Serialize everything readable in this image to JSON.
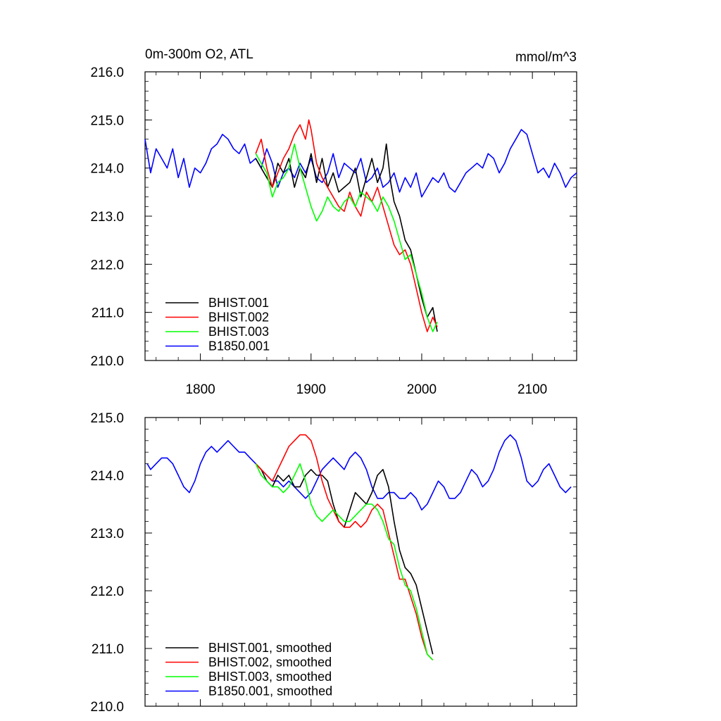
{
  "chart_data": [
    {
      "type": "line",
      "title": "0m-300m O2, ATL",
      "units": "mmol/m^3",
      "xlim": [
        1750,
        2140
      ],
      "ylim": [
        210.0,
        216.0
      ],
      "xticks": [
        1800,
        1900,
        2000,
        2100
      ],
      "xtick_labels": [
        "1800",
        "1900",
        "2000",
        "2100"
      ],
      "yticks": [
        210.0,
        211.0,
        212.0,
        213.0,
        214.0,
        215.0,
        216.0
      ],
      "ytick_labels": [
        "210.0",
        "211.0",
        "212.0",
        "213.0",
        "214.0",
        "215.0",
        "216.0"
      ],
      "legend_position": "bottom-left",
      "series": [
        {
          "name": "BHIST.001",
          "color": "#000000",
          "x": [
            1850,
            1855,
            1860,
            1865,
            1870,
            1875,
            1880,
            1885,
            1890,
            1895,
            1900,
            1905,
            1910,
            1915,
            1920,
            1925,
            1930,
            1935,
            1940,
            1945,
            1950,
            1955,
            1960,
            1965,
            1968,
            1972,
            1975,
            1980,
            1985,
            1990,
            1995,
            2000,
            2005,
            2010,
            2014
          ],
          "y": [
            214.2,
            214.0,
            213.8,
            213.6,
            214.1,
            213.9,
            214.2,
            213.6,
            214.0,
            213.8,
            214.3,
            213.7,
            214.2,
            213.6,
            213.9,
            213.5,
            213.6,
            213.7,
            214.0,
            213.4,
            213.8,
            214.2,
            213.7,
            214.0,
            214.5,
            213.7,
            213.3,
            213.0,
            212.5,
            212.3,
            211.8,
            211.3,
            210.9,
            211.1,
            210.6
          ]
        },
        {
          "name": "BHIST.002",
          "color": "#ff0000",
          "x": [
            1850,
            1855,
            1860,
            1865,
            1870,
            1875,
            1880,
            1885,
            1890,
            1895,
            1898,
            1900,
            1905,
            1910,
            1915,
            1920,
            1925,
            1930,
            1935,
            1940,
            1945,
            1950,
            1955,
            1960,
            1965,
            1970,
            1975,
            1980,
            1985,
            1990,
            1995,
            2000,
            2005,
            2010,
            2014
          ],
          "y": [
            214.3,
            214.6,
            214.0,
            213.6,
            213.9,
            214.2,
            214.4,
            214.7,
            214.9,
            214.6,
            215.0,
            214.8,
            214.1,
            213.8,
            213.6,
            213.4,
            213.2,
            213.1,
            213.5,
            213.2,
            213.0,
            213.5,
            213.3,
            213.6,
            213.2,
            212.8,
            212.4,
            212.2,
            212.3,
            212.0,
            211.5,
            211.0,
            210.6,
            210.9,
            210.7
          ]
        },
        {
          "name": "BHIST.003",
          "color": "#00ff00",
          "x": [
            1850,
            1855,
            1860,
            1865,
            1870,
            1875,
            1880,
            1885,
            1890,
            1895,
            1900,
            1905,
            1910,
            1915,
            1920,
            1925,
            1930,
            1935,
            1940,
            1945,
            1950,
            1955,
            1960,
            1965,
            1970,
            1975,
            1980,
            1985,
            1990,
            1995,
            2000,
            2005,
            2010,
            2014
          ],
          "y": [
            214.3,
            214.1,
            213.9,
            213.4,
            213.7,
            213.8,
            214.0,
            214.5,
            214.0,
            213.6,
            213.2,
            212.9,
            213.1,
            213.4,
            213.2,
            213.1,
            213.3,
            213.4,
            213.2,
            213.5,
            213.4,
            213.3,
            213.1,
            213.4,
            213.2,
            212.9,
            212.5,
            212.1,
            212.2,
            211.8,
            211.4,
            210.9,
            210.6,
            210.8
          ]
        },
        {
          "name": "B1850.001",
          "color": "#0000ff",
          "x": [
            1750,
            1755,
            1760,
            1765,
            1770,
            1775,
            1780,
            1785,
            1790,
            1795,
            1800,
            1805,
            1810,
            1815,
            1820,
            1825,
            1830,
            1835,
            1840,
            1845,
            1850,
            1855,
            1860,
            1865,
            1870,
            1875,
            1880,
            1885,
            1890,
            1895,
            1900,
            1905,
            1910,
            1915,
            1920,
            1925,
            1930,
            1935,
            1940,
            1945,
            1950,
            1955,
            1960,
            1965,
            1970,
            1975,
            1980,
            1985,
            1990,
            1995,
            2000,
            2005,
            2010,
            2015,
            2020,
            2025,
            2030,
            2035,
            2040,
            2045,
            2050,
            2055,
            2060,
            2065,
            2070,
            2075,
            2080,
            2085,
            2090,
            2095,
            2100,
            2105,
            2110,
            2115,
            2120,
            2125,
            2130,
            2135,
            2140
          ],
          "y": [
            214.6,
            213.9,
            214.4,
            214.2,
            214.0,
            214.4,
            213.8,
            214.2,
            213.6,
            214.0,
            213.9,
            214.1,
            214.4,
            214.5,
            214.7,
            214.6,
            214.4,
            214.3,
            214.5,
            214.1,
            214.2,
            214.0,
            214.4,
            214.1,
            213.6,
            213.9,
            214.0,
            213.8,
            214.1,
            213.9,
            214.2,
            213.8,
            213.7,
            213.9,
            214.3,
            213.8,
            214.1,
            214.0,
            213.9,
            214.2,
            213.7,
            213.8,
            214.0,
            213.6,
            213.7,
            213.9,
            213.5,
            213.8,
            213.6,
            213.9,
            213.4,
            213.6,
            213.8,
            213.7,
            213.9,
            213.6,
            213.5,
            213.7,
            213.9,
            214.0,
            214.1,
            214.0,
            214.3,
            214.2,
            213.9,
            214.1,
            214.4,
            214.6,
            214.8,
            214.7,
            214.3,
            213.9,
            214.0,
            213.8,
            214.1,
            213.9,
            213.6,
            213.8,
            213.9
          ]
        }
      ]
    },
    {
      "type": "line",
      "title": "",
      "xlim": [
        1750,
        2140
      ],
      "ylim": [
        210.0,
        215.0
      ],
      "xticks": [
        1800,
        1900,
        2000,
        2100
      ],
      "yticks": [
        210.0,
        211.0,
        212.0,
        213.0,
        214.0,
        215.0
      ],
      "ytick_labels": [
        "210.0",
        "211.0",
        "212.0",
        "213.0",
        "214.0",
        "215.0"
      ],
      "legend_position": "bottom-left",
      "series": [
        {
          "name": "BHIST.001, smoothed",
          "color": "#000000",
          "x": [
            1850,
            1855,
            1860,
            1865,
            1870,
            1875,
            1880,
            1885,
            1890,
            1895,
            1900,
            1905,
            1910,
            1915,
            1920,
            1925,
            1930,
            1935,
            1940,
            1945,
            1950,
            1955,
            1960,
            1965,
            1970,
            1975,
            1980,
            1985,
            1990,
            1995,
            2000,
            2005,
            2010
          ],
          "y": [
            214.2,
            214.1,
            213.9,
            213.8,
            214.0,
            213.9,
            214.0,
            213.8,
            213.8,
            214.0,
            214.1,
            214.0,
            214.0,
            213.9,
            213.5,
            213.2,
            213.1,
            213.4,
            213.7,
            213.6,
            213.5,
            213.7,
            214.0,
            214.1,
            213.8,
            213.2,
            212.7,
            212.4,
            212.3,
            212.1,
            211.7,
            211.3,
            210.9
          ]
        },
        {
          "name": "BHIST.002, smoothed",
          "color": "#ff0000",
          "x": [
            1850,
            1855,
            1860,
            1865,
            1870,
            1875,
            1880,
            1885,
            1890,
            1895,
            1900,
            1905,
            1910,
            1915,
            1920,
            1925,
            1930,
            1935,
            1940,
            1945,
            1950,
            1955,
            1960,
            1965,
            1970,
            1975,
            1980,
            1985,
            1990,
            1995,
            2000,
            2005,
            2010
          ],
          "y": [
            214.2,
            214.1,
            214.0,
            213.9,
            214.1,
            214.3,
            214.5,
            214.6,
            214.7,
            214.7,
            214.6,
            214.3,
            213.9,
            213.6,
            213.4,
            213.2,
            213.1,
            213.1,
            213.2,
            213.1,
            213.2,
            213.4,
            213.5,
            213.4,
            213.0,
            212.6,
            212.2,
            212.2,
            211.9,
            211.6,
            211.2,
            210.9,
            210.8
          ]
        },
        {
          "name": "BHIST.003, smoothed",
          "color": "#00ff00",
          "x": [
            1850,
            1855,
            1860,
            1865,
            1870,
            1875,
            1880,
            1885,
            1890,
            1895,
            1900,
            1905,
            1910,
            1915,
            1920,
            1925,
            1930,
            1935,
            1940,
            1945,
            1950,
            1955,
            1960,
            1965,
            1970,
            1975,
            1980,
            1985,
            1990,
            1995,
            2000,
            2005,
            2010
          ],
          "y": [
            214.2,
            214.0,
            213.9,
            213.8,
            213.8,
            213.7,
            213.8,
            214.0,
            214.2,
            213.9,
            213.5,
            213.3,
            213.2,
            213.3,
            213.4,
            213.3,
            213.2,
            213.2,
            213.3,
            213.4,
            213.5,
            213.5,
            213.4,
            213.2,
            212.9,
            212.8,
            212.4,
            212.1,
            212.0,
            211.7,
            211.3,
            210.9,
            210.8
          ]
        },
        {
          "name": "B1850.001, smoothed",
          "color": "#0000ff",
          "x": [
            1752,
            1755,
            1760,
            1765,
            1770,
            1775,
            1780,
            1785,
            1790,
            1795,
            1800,
            1805,
            1810,
            1815,
            1820,
            1825,
            1830,
            1835,
            1840,
            1845,
            1850,
            1855,
            1860,
            1865,
            1870,
            1875,
            1880,
            1885,
            1890,
            1895,
            1900,
            1905,
            1910,
            1915,
            1920,
            1925,
            1930,
            1935,
            1940,
            1945,
            1950,
            1955,
            1960,
            1965,
            1970,
            1975,
            1980,
            1985,
            1990,
            1995,
            2000,
            2005,
            2010,
            2015,
            2020,
            2025,
            2030,
            2035,
            2040,
            2045,
            2050,
            2055,
            2060,
            2065,
            2070,
            2075,
            2080,
            2085,
            2090,
            2095,
            2100,
            2105,
            2110,
            2115,
            2120,
            2125,
            2130,
            2135
          ],
          "y": [
            214.2,
            214.1,
            214.2,
            214.3,
            214.3,
            214.2,
            214.0,
            213.8,
            213.7,
            213.9,
            214.2,
            214.4,
            214.5,
            214.4,
            214.5,
            214.6,
            214.5,
            214.4,
            214.4,
            214.3,
            214.2,
            214.1,
            214.0,
            213.9,
            213.9,
            213.8,
            213.9,
            213.8,
            213.7,
            213.6,
            213.7,
            213.9,
            214.1,
            214.2,
            214.3,
            214.2,
            214.1,
            214.3,
            214.4,
            214.3,
            214.1,
            213.8,
            213.6,
            213.6,
            213.7,
            213.7,
            213.6,
            213.6,
            213.7,
            213.6,
            213.4,
            213.5,
            213.7,
            213.9,
            213.8,
            213.6,
            213.6,
            213.7,
            213.9,
            214.1,
            214.0,
            213.8,
            213.9,
            214.1,
            214.4,
            214.6,
            214.7,
            214.6,
            214.3,
            213.9,
            213.8,
            213.9,
            214.1,
            214.2,
            214.0,
            213.8,
            213.7,
            213.8
          ]
        }
      ]
    }
  ]
}
